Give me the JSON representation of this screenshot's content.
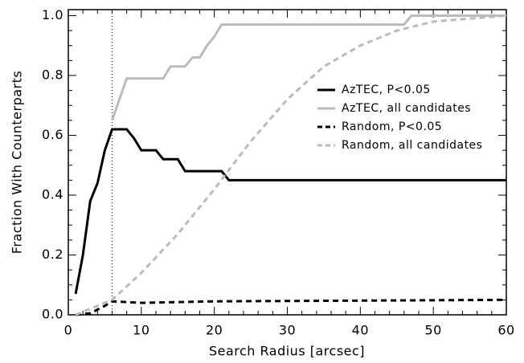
{
  "chart_data": {
    "type": "line",
    "xlabel": "Search Radius [arcsec]",
    "ylabel": "Fraction With Counterparts",
    "xlim": [
      0,
      60
    ],
    "ylim": [
      0,
      1.02
    ],
    "xticks": [
      0,
      10,
      20,
      30,
      40,
      50,
      60
    ],
    "yticks": [
      {
        "value": 0,
        "label": "0.0"
      },
      {
        "value": 0.2,
        "label": "0.2"
      },
      {
        "value": 0.4,
        "label": "0.4"
      },
      {
        "value": 0.6,
        "label": "0.6"
      },
      {
        "value": 0.8,
        "label": "0.8"
      },
      {
        "value": 1,
        "label": "1.0"
      }
    ],
    "vline": 6,
    "legend": "right",
    "series": [
      {
        "name": "AzTEC, P<0.05",
        "color": "#000000",
        "dash": false,
        "x": [
          1,
          2,
          3,
          4,
          5,
          6,
          8,
          9,
          10,
          12,
          13,
          15,
          16,
          21,
          22,
          60
        ],
        "values": [
          0.07,
          0.2,
          0.38,
          0.44,
          0.55,
          0.62,
          0.62,
          0.59,
          0.55,
          0.55,
          0.52,
          0.52,
          0.48,
          0.48,
          0.45,
          0.45
        ]
      },
      {
        "name": "AzTEC, all candidates",
        "color": "#bbbbbb",
        "dash": false,
        "x": [
          6,
          7,
          8,
          13,
          14,
          16,
          17,
          18,
          19,
          20,
          21,
          46,
          47,
          60
        ],
        "values": [
          0.65,
          0.72,
          0.79,
          0.79,
          0.83,
          0.83,
          0.86,
          0.86,
          0.9,
          0.93,
          0.97,
          0.97,
          1.0,
          1.0
        ]
      },
      {
        "name": "Random, P<0.05",
        "color": "#000000",
        "dash": true,
        "x": [
          1,
          3,
          5,
          6,
          10,
          20,
          60
        ],
        "values": [
          0.0,
          0.005,
          0.03,
          0.045,
          0.04,
          0.045,
          0.05
        ]
      },
      {
        "name": "Random, all candidates",
        "color": "#bbbbbb",
        "dash": true,
        "x": [
          1,
          6,
          10,
          15,
          20,
          25,
          30,
          35,
          40,
          45,
          50,
          55,
          60
        ],
        "values": [
          0.0,
          0.05,
          0.14,
          0.27,
          0.42,
          0.58,
          0.72,
          0.83,
          0.9,
          0.95,
          0.98,
          0.99,
          1.0
        ]
      }
    ]
  }
}
